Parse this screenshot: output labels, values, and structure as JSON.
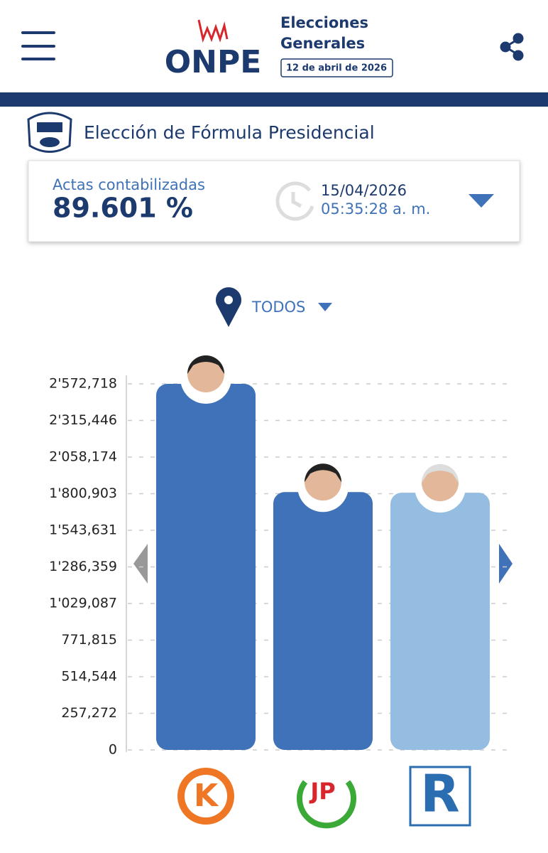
{
  "header": {
    "logo": "ONPE",
    "event_title_1": "Elecciones",
    "event_title_2": "Generales",
    "event_date": "12 de abril de 2026"
  },
  "section_title": "Elección de Fórmula Presidencial",
  "summary": {
    "label": "Actas contabilizadas",
    "percent": "89.601 %",
    "date": "15/04/2026",
    "time": "05:35:28 a. m."
  },
  "filter": {
    "location": "TODOS"
  },
  "chart_data": {
    "type": "bar",
    "categories": [
      null,
      null,
      null
    ],
    "values": [
      2572718,
      1812000,
      1808000
    ],
    "colors": [
      "#3f72b8",
      "#3f72b8",
      "#95bde2"
    ],
    "ylim": [
      0,
      2572718
    ],
    "yticks": [
      0,
      {
        "value": 257272,
        "label": "257,272"
      },
      {
        "value": 514544,
        "label": "514,544"
      },
      {
        "value": 771815,
        "label": "771,815"
      },
      {
        "value": 1029087,
        "label": "1'029,087"
      },
      {
        "value": 1286359,
        "label": "1'286,359"
      },
      {
        "value": 1543631,
        "label": "1'543,631"
      },
      {
        "value": 1800903,
        "label": "1'800,903"
      },
      {
        "value": 2058174,
        "label": "2'058,174"
      },
      {
        "value": 2315446,
        "label": "2'315,446"
      },
      {
        "value": 2572718,
        "label": "2'572,718"
      }
    ],
    "grid": true
  }
}
